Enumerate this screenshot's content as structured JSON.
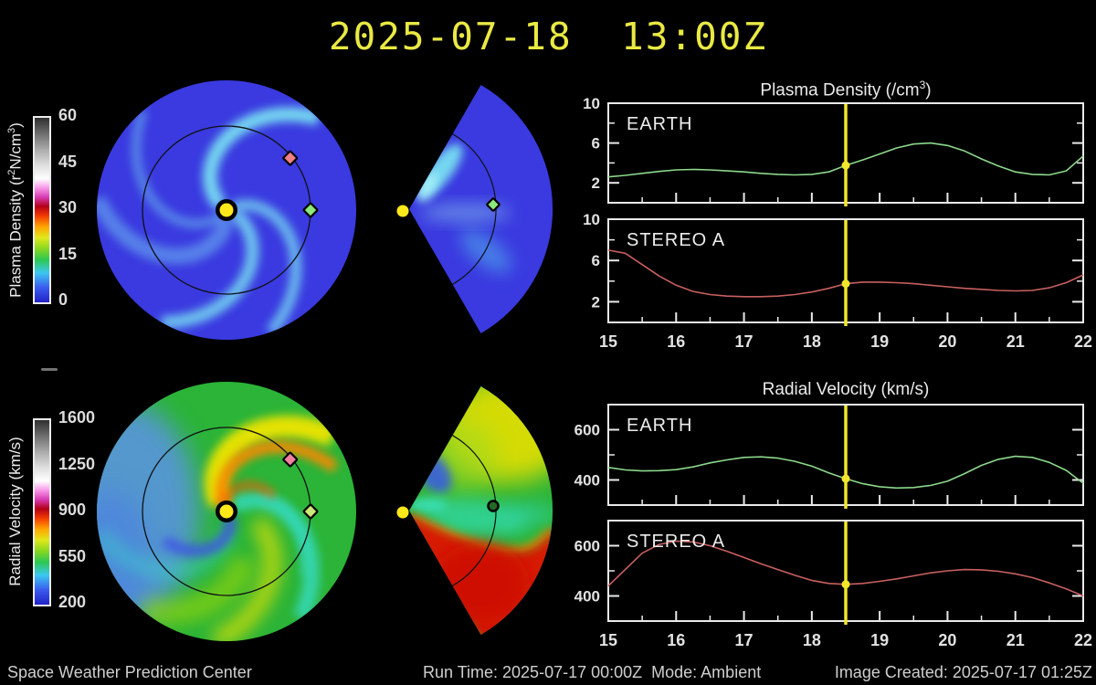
{
  "header": {
    "title": "2025-07-18  13:00Z"
  },
  "colorbars": {
    "gradient_stops": [
      "#2222c8 0%",
      "#3a5cf0 8%",
      "#3cc8f0 16%",
      "#2cc852 23%",
      "#86d820 29%",
      "#e0e81c 35%",
      "#ffa400 41%",
      "#f03800 47%",
      "#b40018 52%",
      "#d83cb4 57%",
      "#f898e8 62%",
      "#ffffff 67%",
      "#e0e0e0 74%",
      "#b0b0b0 82%",
      "#787878 90%",
      "#303030 100%"
    ],
    "density": {
      "label_parts": [
        "Plasma Density (r",
        "2",
        "N/cm",
        "3",
        ")"
      ],
      "ticks": [
        0,
        15,
        30,
        45,
        60
      ]
    },
    "velocity": {
      "label": "Radial Velocity (km/s)",
      "ticks": [
        200,
        550,
        900,
        1250,
        1600
      ]
    }
  },
  "chart_titles": {
    "density": {
      "pre": "Plasma Density (/cm",
      "sup": "3",
      "post": ")"
    },
    "velocity": {
      "text": "Radial Velocity (km/s)"
    }
  },
  "time_axis": {
    "min": 15,
    "max": 22,
    "ticks": [
      15,
      16,
      17,
      18,
      19,
      20,
      21,
      22
    ],
    "minor_step": 0.5
  },
  "marker": {
    "time": 18.5,
    "color": "#f2e62c"
  },
  "chart_data": [
    {
      "id": "density-earth",
      "type": "line",
      "label": "EARTH",
      "color": "#8cd88c",
      "ylim": [
        0,
        10
      ],
      "yticks": [
        2,
        6,
        10
      ],
      "yticks_minor": [
        4,
        8
      ],
      "x": [
        15,
        15.25,
        15.5,
        15.75,
        16,
        16.25,
        16.5,
        16.75,
        17,
        17.25,
        17.5,
        17.75,
        18,
        18.25,
        18.5,
        18.75,
        19,
        19.25,
        19.5,
        19.75,
        20,
        20.25,
        20.5,
        20.75,
        21,
        21.25,
        21.5,
        21.75,
        22
      ],
      "y": [
        2.6,
        2.75,
        2.95,
        3.15,
        3.3,
        3.35,
        3.3,
        3.2,
        3.1,
        2.95,
        2.85,
        2.8,
        2.85,
        3.1,
        3.75,
        4.3,
        4.9,
        5.5,
        5.9,
        6.0,
        5.75,
        5.2,
        4.4,
        3.7,
        3.1,
        2.85,
        2.8,
        3.2,
        4.7
      ]
    },
    {
      "id": "density-stereo",
      "type": "line",
      "label": "STEREO A",
      "color": "#c86060",
      "ylim": [
        0,
        10
      ],
      "yticks": [
        2,
        6,
        10
      ],
      "yticks_minor": [
        4,
        8
      ],
      "show_xlabels": true,
      "x": [
        15,
        15.25,
        15.5,
        15.75,
        16,
        16.25,
        16.5,
        16.75,
        17,
        17.25,
        17.5,
        17.75,
        18,
        18.25,
        18.5,
        18.75,
        19,
        19.25,
        19.5,
        19.75,
        20,
        20.25,
        20.5,
        20.75,
        21,
        21.25,
        21.5,
        21.75,
        22
      ],
      "y": [
        7.0,
        6.7,
        5.6,
        4.5,
        3.6,
        3.0,
        2.7,
        2.55,
        2.5,
        2.5,
        2.55,
        2.7,
        2.95,
        3.3,
        3.75,
        3.9,
        3.9,
        3.85,
        3.75,
        3.6,
        3.45,
        3.3,
        3.2,
        3.1,
        3.05,
        3.1,
        3.35,
        3.85,
        4.6
      ]
    },
    {
      "id": "velocity-earth",
      "type": "line",
      "label": "EARTH",
      "color": "#8cd88c",
      "ylim": [
        300,
        700
      ],
      "yticks": [
        400,
        600
      ],
      "yticks_minor": [
        300,
        500,
        700
      ],
      "x": [
        15,
        15.25,
        15.5,
        15.75,
        16,
        16.25,
        16.5,
        16.75,
        17,
        17.25,
        17.5,
        17.75,
        18,
        18.25,
        18.5,
        18.75,
        19,
        19.25,
        19.5,
        19.75,
        20,
        20.25,
        20.5,
        20.75,
        21,
        21.25,
        21.5,
        21.75,
        22
      ],
      "y": [
        450,
        440,
        436,
        437,
        441,
        452,
        468,
        480,
        490,
        492,
        487,
        474,
        455,
        428,
        405,
        385,
        373,
        368,
        370,
        378,
        395,
        425,
        458,
        482,
        494,
        490,
        470,
        438,
        387
      ]
    },
    {
      "id": "velocity-stereo",
      "type": "line",
      "label": "STEREO A",
      "color": "#c86060",
      "ylim": [
        300,
        700
      ],
      "yticks": [
        400,
        600
      ],
      "yticks_minor": [
        300,
        500,
        700
      ],
      "show_xlabels": true,
      "x": [
        15,
        15.25,
        15.5,
        15.75,
        16,
        16.25,
        16.5,
        16.75,
        17,
        17.25,
        17.5,
        17.75,
        18,
        18.25,
        18.5,
        18.75,
        19,
        19.25,
        19.5,
        19.75,
        20,
        20.25,
        20.5,
        20.75,
        21,
        21.25,
        21.5,
        21.75,
        22
      ],
      "y": [
        440,
        505,
        570,
        605,
        618,
        615,
        600,
        578,
        553,
        528,
        505,
        482,
        462,
        450,
        446,
        450,
        458,
        468,
        480,
        492,
        500,
        505,
        504,
        498,
        488,
        473,
        452,
        428,
        400
      ]
    }
  ],
  "maps": {
    "sun_color": "#ffe81a",
    "earth_marker_color": "#8ce87a",
    "stereo_marker_color": "#f08088",
    "orbit_ring_color": "#101014",
    "density_polar": {
      "base": "#3a3ae0",
      "arm_color": "#7ce8f2"
    },
    "density_wedge": {
      "base": "#3a3ae0",
      "plume": "#aef4f8",
      "streak": "#8fd0f0",
      "blob": "#55c0ee"
    },
    "velocity_polar": {
      "base": "#2bb437",
      "orange": "#ff8800",
      "yellow": "#eee400",
      "cyan": "#38dcc6",
      "blue": "#3f55e8",
      "light_blue": "#5b93e8",
      "earth_fill": "#cce87a",
      "stereo_fill": "#f080a0"
    },
    "velocity_wedge": {
      "base": "#2bb437",
      "red": "#dd1800",
      "red_core": "#cc0f00",
      "orange": "#ff9000",
      "yellow": "#e8e000",
      "yellow_green": "#9cd820",
      "cyan": "#35e0c0",
      "blue": "#3858e8",
      "earth_fill": "#256a25"
    }
  },
  "footer": {
    "left": "Space Weather Prediction Center",
    "center": "Run Time: 2025-07-17 00:00Z  Mode: Ambient",
    "right": "Image Created: 2025-07-17 01:25Z"
  }
}
